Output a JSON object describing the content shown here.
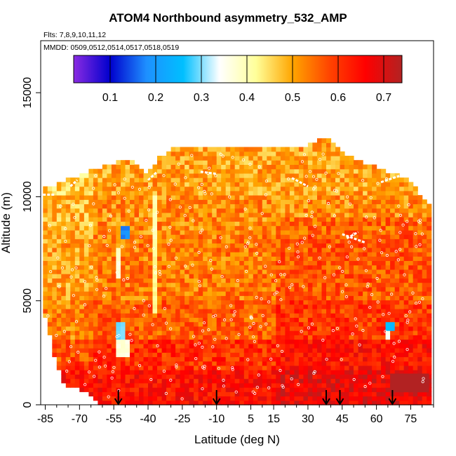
{
  "chart_data": {
    "type": "heatmap",
    "title": "ATOM4 Northbound asymmetry_532_AMP",
    "notes": {
      "flights": "Flts: 7,8,9,10,11,12",
      "dates": "MMDD: 0509,0512,0514,0517,0518,0519"
    },
    "xlabel": "Latitude (deg N)",
    "ylabel": "Altitude (m)",
    "xlim": [
      -87,
      85
    ],
    "ylim": [
      0,
      17500
    ],
    "x_ticks": [
      -85,
      -70,
      -55,
      -40,
      -25,
      -10,
      5,
      15,
      30,
      45,
      60,
      75
    ],
    "x_tick_labels": [
      "-85",
      "-70",
      "-55",
      "-40",
      "-25",
      "-10",
      "5",
      "15",
      "30",
      "45",
      "60",
      "75"
    ],
    "y_ticks": [
      0,
      5000,
      10000,
      15000
    ],
    "y_tick_labels": [
      "0",
      "5000",
      "10000",
      "15000"
    ],
    "colorbar": {
      "range": [
        0.02,
        0.74
      ],
      "ticks": [
        0.1,
        0.2,
        0.3,
        0.4,
        0.5,
        0.6,
        0.7
      ],
      "tick_labels": [
        "0.1",
        "0.2",
        "0.3",
        "0.4",
        "0.5",
        "0.6",
        "0.7"
      ],
      "colors": [
        "#8a2be2",
        "#0000cd",
        "#1e90ff",
        "#00bfff",
        "#ffffff",
        "#ffff99",
        "#ffa500",
        "#ff4500",
        "#ff0000",
        "#b22222"
      ]
    },
    "arrows_latitude": [
      -53,
      -10,
      38,
      44,
      67
    ],
    "coverage_profile": [
      {
        "lat": -86,
        "top": 10500
      },
      {
        "lat": -80,
        "top": 10500
      },
      {
        "lat": -74,
        "top": 10800
      },
      {
        "lat": -68,
        "top": 11000
      },
      {
        "lat": -62,
        "top": 11300
      },
      {
        "lat": -55,
        "top": 11500
      },
      {
        "lat": -48,
        "top": 11800
      },
      {
        "lat": -41,
        "top": 11000
      },
      {
        "lat": -35,
        "top": 11800
      },
      {
        "lat": -28,
        "top": 12300
      },
      {
        "lat": -20,
        "top": 12300
      },
      {
        "lat": -10,
        "top": 12300
      },
      {
        "lat": 0,
        "top": 12300
      },
      {
        "lat": 10,
        "top": 12200
      },
      {
        "lat": 20,
        "top": 12200
      },
      {
        "lat": 30,
        "top": 12400
      },
      {
        "lat": 38,
        "top": 12800
      },
      {
        "lat": 46,
        "top": 12000
      },
      {
        "lat": 54,
        "top": 11600
      },
      {
        "lat": 62,
        "top": 11200
      },
      {
        "lat": 70,
        "top": 11000
      },
      {
        "lat": 76,
        "top": 10500
      },
      {
        "lat": 82,
        "top": 9500
      }
    ],
    "bottom_profile": [
      {
        "lat": -86,
        "bottom": 4500
      },
      {
        "lat": -84,
        "bottom": 4000
      },
      {
        "lat": -80,
        "bottom": 2000
      },
      {
        "lat": -76,
        "bottom": 1000
      },
      {
        "lat": -68,
        "bottom": 800
      },
      {
        "lat": -64,
        "bottom": 300
      },
      {
        "lat": -56,
        "bottom": 0
      },
      {
        "lat": 84,
        "bottom": 0
      }
    ],
    "features": [
      {
        "lat_min": -55,
        "lat_max": -49,
        "alt_min": 3200,
        "alt_max": 4000,
        "value": 0.3
      },
      {
        "lat_min": -54,
        "lat_max": -48,
        "alt_min": 2400,
        "alt_max": 3200,
        "value": 0.37
      },
      {
        "lat_min": -55,
        "lat_max": -51,
        "alt_min": 6000,
        "alt_max": 7500,
        "value": 0.38
      },
      {
        "lat_min": -52,
        "lat_max": -47,
        "alt_min": 8000,
        "alt_max": 8600,
        "value": 0.18
      },
      {
        "lat_min": -53,
        "lat_max": -51,
        "alt_min": 8600,
        "alt_max": 9000,
        "value": 0.1
      },
      {
        "lat_min": -39,
        "lat_max": -35,
        "alt_min": 7500,
        "alt_max": 10000,
        "value": 0.4
      },
      {
        "lat_min": -38,
        "lat_max": -35,
        "alt_min": 4500,
        "alt_max": 7500,
        "value": 0.42
      },
      {
        "lat_min": 63,
        "lat_max": 68,
        "alt_min": 3500,
        "alt_max": 4000,
        "value": 0.25
      },
      {
        "lat_min": 64,
        "lat_max": 67,
        "alt_min": 3200,
        "alt_max": 3500,
        "value": 0.35
      },
      {
        "lat_min": 22,
        "lat_max": 23,
        "alt_min": 10600,
        "alt_max": 11000,
        "value": 0.2
      }
    ]
  }
}
